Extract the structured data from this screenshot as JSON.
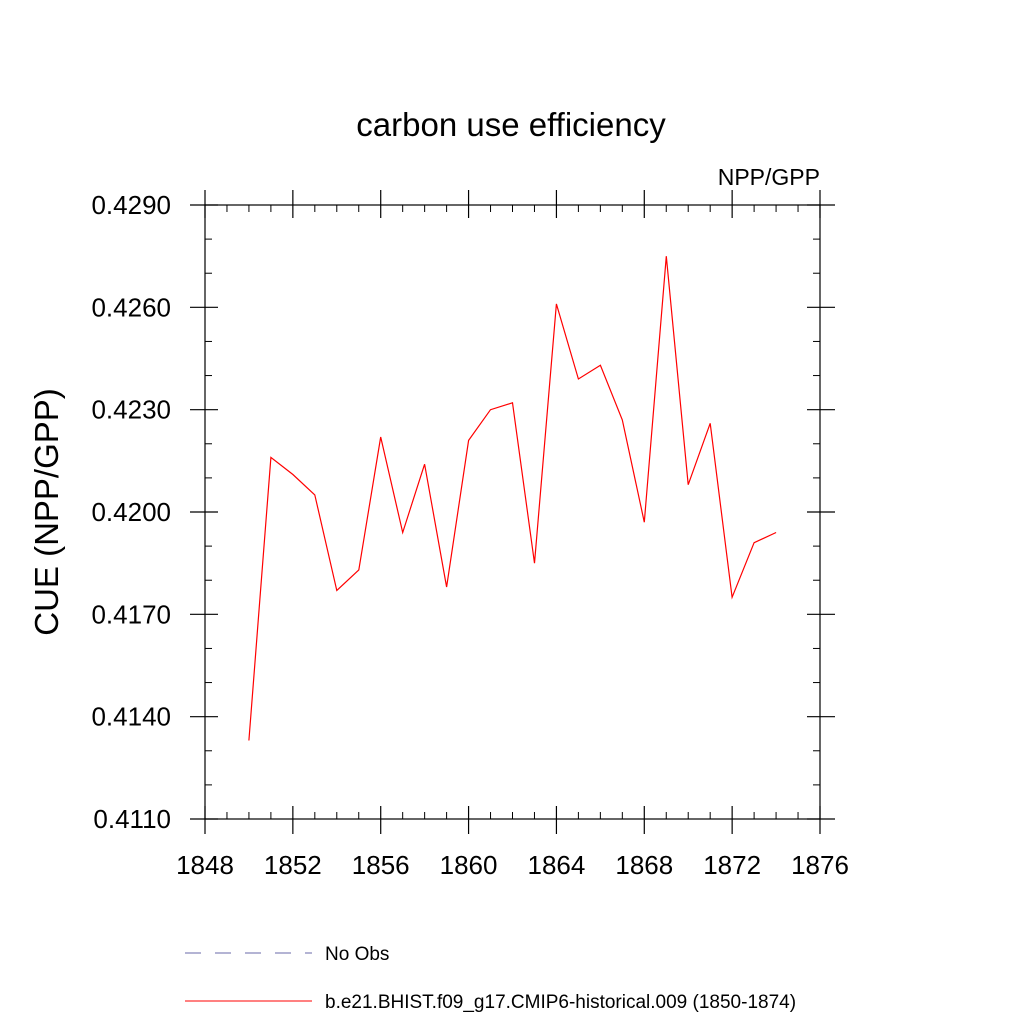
{
  "chart_data": {
    "type": "line",
    "title": "carbon use efficiency",
    "subtitle": "NPP/GPP",
    "xlabel": "",
    "ylabel": "CUE  (NPP/GPP)",
    "xlim": [
      1848,
      1876
    ],
    "ylim": [
      0.411,
      0.429
    ],
    "x_ticks": [
      1848,
      1852,
      1856,
      1860,
      1864,
      1868,
      1872,
      1876
    ],
    "x_tick_labels": [
      "1848",
      "1852",
      "1856",
      "1860",
      "1864",
      "1868",
      "1872",
      "1876"
    ],
    "y_ticks": [
      0.411,
      0.414,
      0.417,
      0.42,
      0.423,
      0.426,
      0.429
    ],
    "y_tick_labels": [
      "0.4110",
      "0.4140",
      "0.4170",
      "0.4200",
      "0.4230",
      "0.4260",
      "0.4290"
    ],
    "x_minor_step": 1,
    "y_minor_step": 0.001,
    "grid": false,
    "series": [
      {
        "name": "b.e21.BHIST.f09_g17.CMIP6-historical.009 (1850-1874)",
        "color": "#ff0000",
        "style": "solid",
        "x": [
          1850,
          1851,
          1852,
          1853,
          1854,
          1855,
          1856,
          1857,
          1858,
          1859,
          1860,
          1861,
          1862,
          1863,
          1864,
          1865,
          1866,
          1867,
          1868,
          1869,
          1870,
          1871,
          1872,
          1873,
          1874
        ],
        "y": [
          0.4133,
          0.4216,
          0.4211,
          0.4205,
          0.4177,
          0.4183,
          0.4222,
          0.4194,
          0.4214,
          0.4178,
          0.4221,
          0.423,
          0.4232,
          0.4185,
          0.4261,
          0.4239,
          0.4243,
          0.4227,
          0.4197,
          0.4275,
          0.4208,
          0.4226,
          0.4175,
          0.4191,
          0.4194
        ]
      }
    ],
    "legend": [
      {
        "label": "No Obs",
        "color": "#6a6aaa",
        "style": "dashed"
      },
      {
        "label": "b.e21.BHIST.f09_g17.CMIP6-historical.009 (1850-1874)",
        "color": "#ff0000",
        "style": "solid"
      }
    ],
    "legend_position": "bottom"
  }
}
